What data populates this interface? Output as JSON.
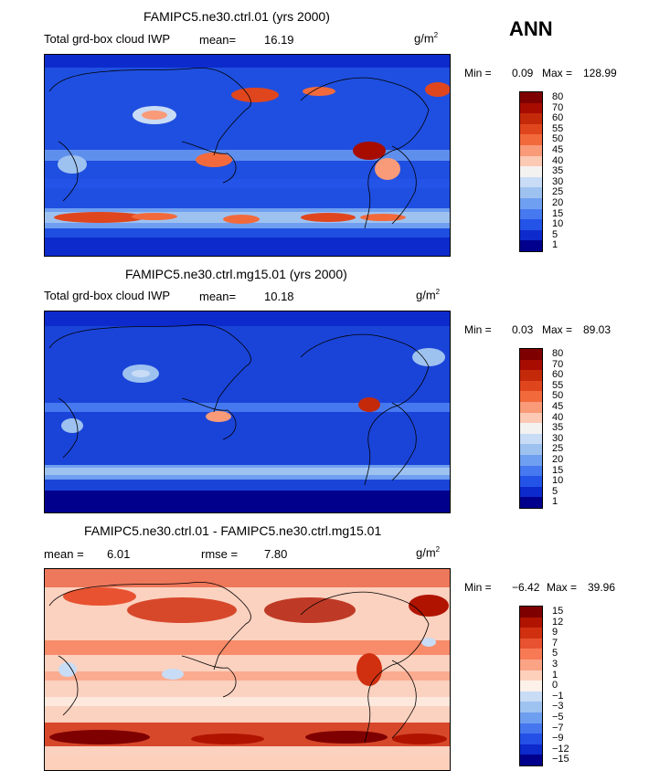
{
  "header": {
    "season": "ANN"
  },
  "panels": [
    {
      "title": "FAMIPC5.ne30.ctrl.01 (yrs 2000)",
      "variable": "Total grd-box cloud IWP",
      "mean_label": "mean=",
      "mean_value": "16.19",
      "units_base": "g/m",
      "units_exp": "2",
      "min_label": "Min =",
      "min_value": "0.09",
      "max_label": "Max =",
      "max_value": "128.99",
      "levels": [
        "80",
        "70",
        "60",
        "55",
        "50",
        "45",
        "40",
        "35",
        "30",
        "25",
        "20",
        "15",
        "10",
        "5",
        "1"
      ]
    },
    {
      "title": "FAMIPC5.ne30.ctrl.mg15.01 (yrs 2000)",
      "variable": "Total grd-box cloud IWP",
      "mean_label": "mean=",
      "mean_value": "10.18",
      "units_base": "g/m",
      "units_exp": "2",
      "min_label": "Min =",
      "min_value": "0.03",
      "max_label": "Max =",
      "max_value": "89.03",
      "levels": [
        "80",
        "70",
        "60",
        "55",
        "50",
        "45",
        "40",
        "35",
        "30",
        "25",
        "20",
        "15",
        "10",
        "5",
        "1"
      ]
    },
    {
      "title": "FAMIPC5.ne30.ctrl.01 - FAMIPC5.ne30.ctrl.mg15.01",
      "mean_label": "mean =",
      "mean_value": "6.01",
      "rmse_label": "rmse =",
      "rmse_value": "7.80",
      "units_base": "g/m",
      "units_exp": "2",
      "min_label": "Min =",
      "min_value": "−6.42",
      "max_label": "Max =",
      "max_value": "39.96",
      "levels": [
        "15",
        "12",
        "9",
        "7",
        "5",
        "3",
        "1",
        "0",
        "−1",
        "−3",
        "−5",
        "−7",
        "−9",
        "−12",
        "−15"
      ]
    }
  ],
  "colors": {
    "abs_scale": [
      "#7f0000",
      "#a80c00",
      "#c42a0a",
      "#e0461e",
      "#f26a3c",
      "#f99a78",
      "#fcc9b4",
      "#f4f1f1",
      "#c9dcf5",
      "#9ec2f0",
      "#6f9ff0",
      "#4679f0",
      "#2453e8",
      "#0d2bcc",
      "#00008c"
    ],
    "diff_scale": [
      "#7f0000",
      "#b01400",
      "#d03010",
      "#e85230",
      "#f77a55",
      "#fba385",
      "#fdd0bc",
      "#fdf2ea",
      "#c8dcf5",
      "#9fc3f0",
      "#6e9ef0",
      "#4576ee",
      "#2450e6",
      "#0d2acc",
      "#00008c"
    ],
    "map_bg_1": "#1f4fe0",
    "map_bg_2": "#1a44d8",
    "map_bg_3": "#fbd1bf"
  }
}
